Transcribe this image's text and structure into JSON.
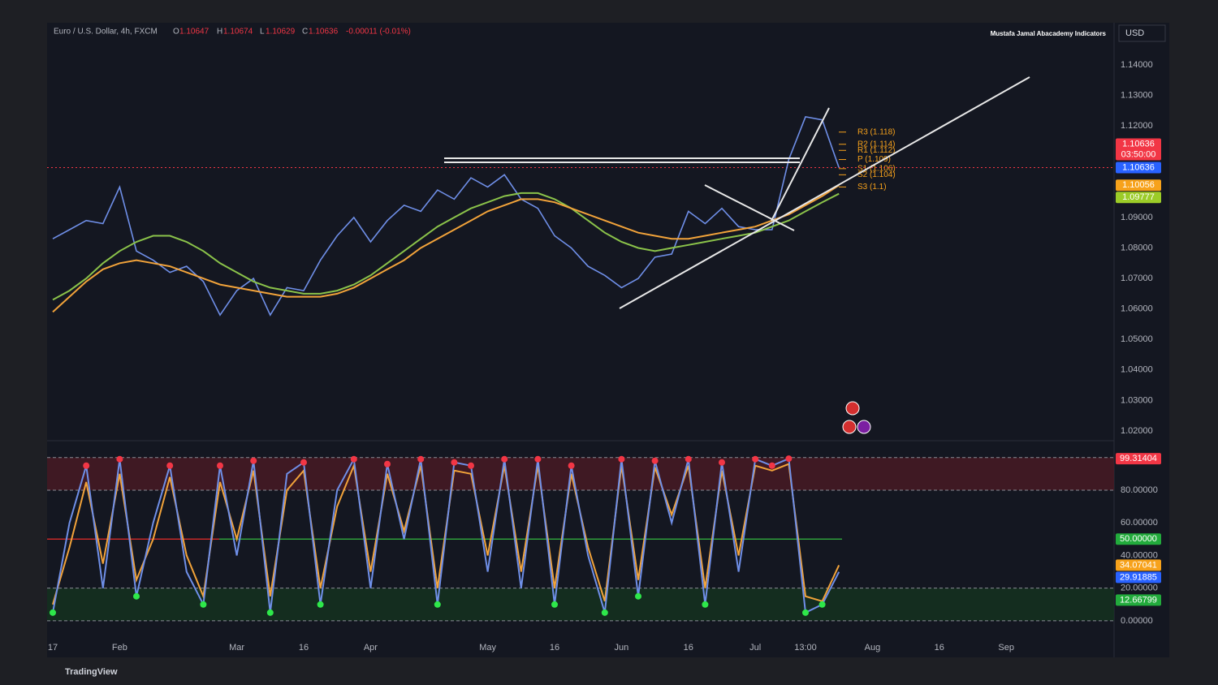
{
  "header": {
    "symbol": "Euro / U.S. Dollar, 4h, FXCM",
    "o_label": "O",
    "open": "1.10647",
    "h_label": "H",
    "high": "1.10674",
    "l_label": "L",
    "low": "1.10629",
    "c_label": "C",
    "close": "1.10636",
    "change": "-0.00011 (-0.01%)",
    "indicator": "Mustafa Jamal Abacademy Indicators",
    "currency": "USD",
    "brand": "TradingView"
  },
  "chart_data": [
    {
      "type": "line",
      "categories": [
        "17",
        null,
        null,
        null,
        "Feb",
        null,
        null,
        null,
        null,
        null,
        null,
        "Mar",
        null,
        null,
        null,
        "16",
        null,
        null,
        null,
        "Apr",
        null,
        null,
        null,
        null,
        null,
        null,
        "May",
        null,
        null,
        null,
        "16",
        null,
        null,
        null,
        "Jun",
        null,
        null,
        null,
        "16",
        null,
        null,
        null,
        "Jul",
        null,
        null,
        "13:00",
        null,
        null,
        null,
        "Aug",
        null,
        null,
        null,
        "16",
        null,
        null,
        null,
        "Sep",
        null
      ],
      "series": [
        {
          "color": "#6f8fe8",
          "values": [
            1.083,
            1.086,
            1.089,
            1.088,
            1.1,
            1.079,
            1.076,
            1.072,
            1.074,
            1.069,
            1.058,
            1.066,
            1.07,
            1.058,
            1.067,
            1.066,
            1.076,
            1.084,
            1.09,
            1.082,
            1.089,
            1.094,
            1.092,
            1.099,
            1.096,
            1.103,
            1.1,
            1.104,
            1.096,
            1.093,
            1.084,
            1.08,
            1.074,
            1.071,
            1.067,
            1.07,
            1.077,
            1.078,
            1.092,
            1.088,
            1.093,
            1.087,
            1.086,
            1.086,
            1.109,
            1.123,
            1.122,
            1.10636,
            null,
            null,
            null,
            null,
            null,
            null,
            null,
            null,
            null,
            null,
            null
          ]
        },
        {
          "color": "#8bc34a",
          "values": [
            1.063,
            1.066,
            1.07,
            1.075,
            1.079,
            1.082,
            1.084,
            1.084,
            1.082,
            1.079,
            1.075,
            1.072,
            1.069,
            1.067,
            1.066,
            1.065,
            1.065,
            1.066,
            1.068,
            1.071,
            1.075,
            1.079,
            1.083,
            1.087,
            1.09,
            1.093,
            1.095,
            1.097,
            1.098,
            1.098,
            1.096,
            1.093,
            1.089,
            1.085,
            1.082,
            1.08,
            1.079,
            1.08,
            1.081,
            1.082,
            1.083,
            1.084,
            1.085,
            1.087,
            1.089,
            1.092,
            1.095,
            1.09777,
            null,
            null,
            null,
            null,
            null,
            null,
            null,
            null,
            null,
            null,
            null
          ]
        },
        {
          "color": "#f2a33a",
          "values": [
            1.059,
            1.064,
            1.069,
            1.073,
            1.075,
            1.076,
            1.075,
            1.074,
            1.072,
            1.07,
            1.068,
            1.067,
            1.066,
            1.065,
            1.064,
            1.064,
            1.064,
            1.065,
            1.067,
            1.07,
            1.073,
            1.076,
            1.08,
            1.083,
            1.086,
            1.089,
            1.092,
            1.094,
            1.096,
            1.096,
            1.095,
            1.093,
            1.091,
            1.089,
            1.087,
            1.085,
            1.084,
            1.083,
            1.083,
            1.084,
            1.085,
            1.086,
            1.087,
            1.089,
            1.091,
            1.094,
            1.097,
            1.10056,
            null,
            null,
            null,
            null,
            null,
            null,
            null,
            null,
            null,
            null,
            null
          ]
        }
      ],
      "ylim": [
        1.0176,
        1.148
      ],
      "yticks": [
        {
          "value": 1.02,
          "label": "1.02000"
        },
        {
          "value": 1.03,
          "label": "1.03000"
        },
        {
          "value": 1.04,
          "label": "1.04000"
        },
        {
          "value": 1.05,
          "label": "1.05000"
        },
        {
          "value": 1.06,
          "label": "1.06000"
        },
        {
          "value": 1.07,
          "label": "1.07000"
        },
        {
          "value": 1.08,
          "label": "1.08000"
        },
        {
          "value": 1.09,
          "label": "1.09000"
        },
        {
          "value": 1.1,
          "label": "1.10000"
        },
        {
          "value": 1.11,
          "label": "1.11000"
        },
        {
          "value": 1.12,
          "label": "1.12000"
        },
        {
          "value": 1.13,
          "label": "1.13000"
        },
        {
          "value": 1.14,
          "label": "1.14000"
        }
      ],
      "price_tags": [
        {
          "value": 1.10636,
          "label": "1.10636",
          "sub": "03:50:00",
          "color": "#f23645"
        },
        {
          "value": 1.10636,
          "label": "1.10636",
          "color": "#2962ff"
        },
        {
          "value": 1.10056,
          "label": "1.10056",
          "color": "#f7a21b"
        },
        {
          "value": 1.09777,
          "label": "1.09777",
          "color": "#9ccc28"
        }
      ],
      "pivots": [
        {
          "value": 1.118,
          "label": "R3 (1.118)"
        },
        {
          "value": 1.114,
          "label": "R2 (1.114)"
        },
        {
          "value": 1.112,
          "label": "R1 (1.112)"
        },
        {
          "value": 1.109,
          "label": "P (1.109)"
        },
        {
          "value": 1.106,
          "label": "S1 (1.106)"
        },
        {
          "value": 1.104,
          "label": "S2 (1.104)"
        },
        {
          "value": 1.1,
          "label": "S3 (1.1)"
        }
      ]
    },
    {
      "type": "line",
      "series": [
        {
          "color": "#f2a33a",
          "values": [
            10,
            45,
            85,
            35,
            90,
            25,
            50,
            88,
            40,
            15,
            85,
            50,
            92,
            15,
            80,
            92,
            20,
            70,
            95,
            30,
            90,
            55,
            95,
            20,
            92,
            90,
            40,
            95,
            30,
            95,
            20,
            90,
            45,
            12,
            95,
            25,
            94,
            65,
            95,
            20,
            92,
            40,
            95,
            92,
            96,
            15,
            12,
            34.07041
          ]
        },
        {
          "color": "#6f8fe8",
          "values": [
            5,
            60,
            95,
            20,
            99,
            15,
            60,
            95,
            30,
            10,
            95,
            40,
            98,
            5,
            90,
            97,
            10,
            80,
            99,
            20,
            96,
            50,
            99,
            10,
            97,
            95,
            30,
            99,
            20,
            99,
            10,
            95,
            40,
            5,
            99,
            15,
            98,
            60,
            99,
            10,
            97,
            30,
            99,
            95,
            99.31404,
            5,
            10,
            29.91885
          ]
        }
      ],
      "ylim": [
        -7.5,
        107.8
      ],
      "yticks": [
        {
          "value": 0,
          "label": "0.00000"
        },
        {
          "value": 20,
          "label": "20.00000"
        },
        {
          "value": 40,
          "label": "40.00000"
        },
        {
          "value": 60,
          "label": "60.00000"
        },
        {
          "value": 80,
          "label": "80.00000"
        }
      ],
      "bands": [
        {
          "from": 80,
          "to": 100,
          "color": "#4a1a24"
        },
        {
          "from": 0,
          "to": 20,
          "color": "#14331f"
        }
      ],
      "midline": 50,
      "price_tags": [
        {
          "value": 99.31404,
          "label": "99.31404",
          "color": "#f23645"
        },
        {
          "value": 50,
          "label": "50.00000",
          "color": "#22ab3c"
        },
        {
          "value": 34.07041,
          "label": "34.07041",
          "color": "#f7a21b"
        },
        {
          "value": 29.91885,
          "label": "29.91885",
          "color": "#2962ff"
        },
        {
          "value": 12.66799,
          "label": "12.66799",
          "color": "#22ab3c"
        }
      ]
    }
  ]
}
